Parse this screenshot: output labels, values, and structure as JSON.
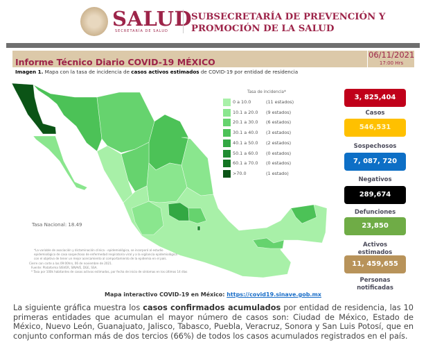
{
  "header": {
    "logo_text": "SALUD",
    "logo_subtext": "SECRETARÍA DE SALUD",
    "subsecretaria_line1": "SUBSECRETARÍA DE PREVENCIÓN Y",
    "subsecretaria_line2": "PROMOCIÓN DE LA SALUD"
  },
  "report": {
    "title": "Informe Técnico Diario COVID-19 MÉXICO",
    "date": "06/11/2021",
    "time": "17:00 Hrs",
    "caption_prefix": "Imagen 1.",
    "caption_a": " Mapa con la tasa de incidencia de ",
    "caption_bold": "casos activos estimados",
    "caption_b": " de COVID-19 por entidad de residencia"
  },
  "legend": {
    "title": "Tasa de incidencia*",
    "items": [
      {
        "range": "0   a  10.0",
        "count": "(11 estados)",
        "color": "#a8f0a8"
      },
      {
        "range": "10.1 a 20.0",
        "count": "(9 estados)",
        "color": "#8ae68e"
      },
      {
        "range": "20.1 a 30.0",
        "count": "(6 estados)",
        "color": "#66d36e"
      },
      {
        "range": "30.1 a 40.0",
        "count": "(3 estados)",
        "color": "#4cc257"
      },
      {
        "range": "40.1 a 50.0",
        "count": "(2 estados)",
        "color": "#33a843"
      },
      {
        "range": "50.1 a 60.0",
        "count": "(0 estados)",
        "color": "#1f8c30"
      },
      {
        "range": "60.1 a 70.0",
        "count": "(0 estados)",
        "color": "#137522"
      },
      {
        "range": ">70.0",
        "count": "(1 estado)",
        "color": "#0b5416"
      }
    ]
  },
  "map": {
    "national_rate": "Tasa Nacional: 18.49",
    "footnotes": [
      "*La variable de asociación y dictaminación clínica - epidemiológica, se incorporó al estudio",
      "epidemiológico de caso sospechoso de enfermedad respiratoria viral y a la vigilancia epidemiológica",
      "con el objetivo de tener un mejor acercamiento al comportamiento de la epidemia en el país.",
      "Cierre con corte a las 09:00hrs, 06 de noviembre de 2021.",
      "Fuente: Plataforma SISVER, SINAVE, DGE, SSA.",
      "* Tasa por 100k habitantes de casos activos estimados, por fecha de inicio de síntomas en los últimos 14 días"
    ]
  },
  "stats": [
    {
      "value": "3, 825,404",
      "label": "Casos",
      "color": "#c0001a"
    },
    {
      "value": "546,531",
      "label": "Sospechosos",
      "color": "#ffc000"
    },
    {
      "value": "7, 087, 720",
      "label": "Negativos",
      "color": "#0d6fc6"
    },
    {
      "value": "289,674",
      "label": "Defunciones",
      "color": "#000000"
    },
    {
      "value": "23,850",
      "label": "Activos estimados",
      "color": "#6fac46"
    },
    {
      "value": "11, 459,655",
      "label": "Personas notificadas",
      "color": "#b8935a"
    }
  ],
  "link": {
    "label": "Mapa interactivo COVID-19 en México: ",
    "url_text": "https://covid19.sinave.gob.mx"
  },
  "paragraph": {
    "a": "La siguiente gráfica muestra los ",
    "bold": "casos confirmados acumulados",
    "b": " por entidad de residencia, las 10 primeras entidades que acumulan el mayor número de casos son: Ciudad de México, Estado de México, Nuevo León, Guanajuato, Jalisco, Tabasco, Puebla, Veracruz, Sonora y San Luis Potosí, que en conjunto conforman más de dos tercios (66%) de todos los casos acumulados registrados en el país."
  }
}
